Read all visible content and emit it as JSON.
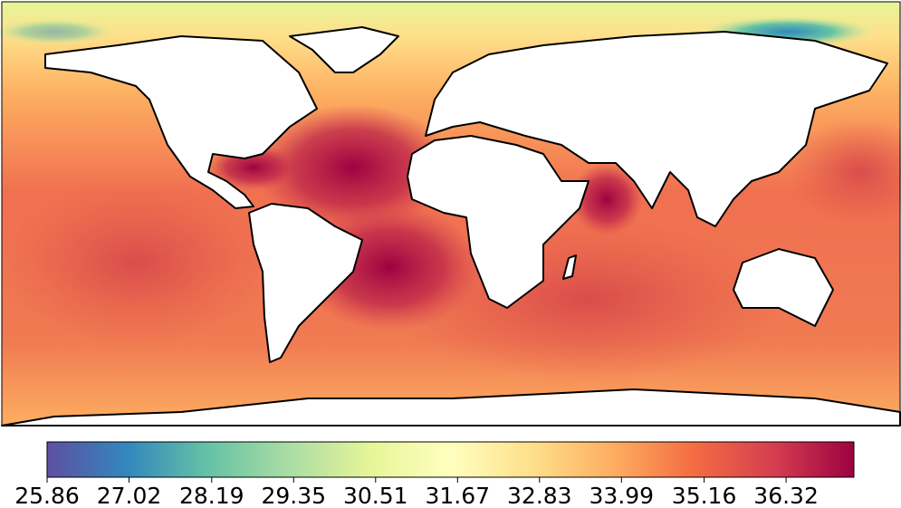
{
  "colorbar": {
    "lim": [
      25.86,
      37.28
    ],
    "ticks": [
      25.86,
      27.02,
      28.19,
      29.35,
      30.51,
      31.67,
      32.83,
      33.99,
      35.16,
      36.32
    ],
    "colormap": [
      "#5e4fa2",
      "#3288bd",
      "#66c2a5",
      "#abdda4",
      "#e6f598",
      "#ffffbf",
      "#fee08b",
      "#fdae61",
      "#f46d43",
      "#d53e4f",
      "#9e0142"
    ]
  }
}
